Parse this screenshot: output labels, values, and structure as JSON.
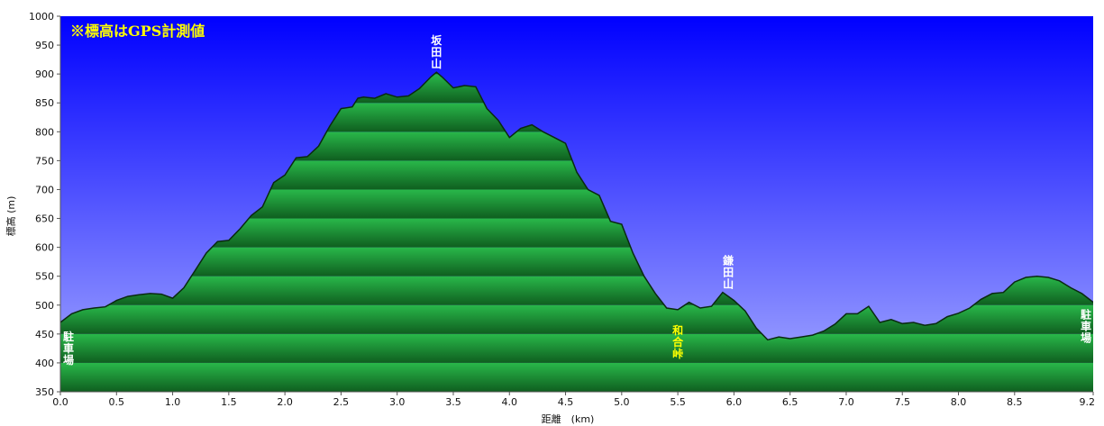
{
  "chart_data": {
    "type": "area",
    "note": "※標高はGPS計測値",
    "xlabel": "距離　(km)",
    "ylabel": "標高 (m)",
    "xlim": [
      0,
      9.2
    ],
    "ylim": [
      350,
      1000
    ],
    "xticks": [
      "0.0",
      "0.5",
      "1.0",
      "1.5",
      "2.0",
      "2.5",
      "3.0",
      "3.5",
      "4.0",
      "4.5",
      "5.0",
      "5.5",
      "6.0",
      "6.5",
      "7.0",
      "7.5",
      "8.0",
      "8.5",
      "9.2"
    ],
    "yticks": [
      "350",
      "400",
      "450",
      "500",
      "550",
      "600",
      "650",
      "700",
      "750",
      "800",
      "850",
      "900",
      "950",
      "1000"
    ],
    "series": [
      {
        "x": [
          0.0,
          0.1,
          0.2,
          0.3,
          0.4,
          0.5,
          0.6,
          0.7,
          0.8,
          0.9,
          1.0,
          1.1,
          1.2,
          1.3,
          1.4,
          1.5,
          1.6,
          1.7,
          1.8,
          1.9,
          2.0,
          2.1,
          2.2,
          2.3,
          2.4,
          2.5,
          2.6,
          2.65,
          2.7,
          2.8,
          2.9,
          3.0,
          3.1,
          3.2,
          3.3,
          3.35,
          3.4,
          3.5,
          3.6,
          3.7,
          3.8,
          3.9,
          4.0,
          4.1,
          4.2,
          4.3,
          4.4,
          4.5,
          4.6,
          4.7,
          4.8,
          4.9,
          5.0,
          5.1,
          5.2,
          5.3,
          5.4,
          5.5,
          5.6,
          5.7,
          5.8,
          5.9,
          6.0,
          6.1,
          6.2,
          6.3,
          6.4,
          6.5,
          6.6,
          6.7,
          6.8,
          6.9,
          7.0,
          7.1,
          7.2,
          7.3,
          7.4,
          7.5,
          7.6,
          7.7,
          7.8,
          7.9,
          8.0,
          8.1,
          8.2,
          8.3,
          8.4,
          8.5,
          8.6,
          8.7,
          8.8,
          8.9,
          9.0,
          9.1,
          9.2
        ],
        "y": [
          470,
          485,
          492,
          495,
          497,
          508,
          515,
          518,
          520,
          519,
          512,
          530,
          560,
          590,
          610,
          612,
          632,
          655,
          670,
          712,
          725,
          755,
          757,
          775,
          810,
          840,
          843,
          858,
          860,
          858,
          866,
          860,
          862,
          875,
          895,
          903,
          895,
          876,
          880,
          878,
          840,
          820,
          790,
          806,
          812,
          800,
          790,
          780,
          730,
          700,
          690,
          645,
          640,
          590,
          550,
          520,
          495,
          492,
          505,
          495,
          498,
          522,
          508,
          490,
          460,
          440,
          445,
          442,
          445,
          448,
          455,
          467,
          485,
          485,
          498,
          470,
          475,
          468,
          470,
          465,
          468,
          480,
          486,
          495,
          510,
          520,
          522,
          540,
          548,
          550,
          548,
          542,
          530,
          520,
          505
        ]
      }
    ],
    "annotations": [
      {
        "text": "坂田山",
        "x": 3.35,
        "y": 903,
        "color": "#ffffff"
      },
      {
        "text": "鎌田山",
        "x": 5.95,
        "y": 522,
        "color": "#ffffff"
      },
      {
        "text": "和合峠",
        "x": 5.5,
        "y": 492,
        "color": "#ffff00"
      },
      {
        "text": "駐車場",
        "x": 0.0,
        "y": 470,
        "color": "#ffffff"
      },
      {
        "text": "駐車場",
        "x": 9.2,
        "y": 505,
        "color": "#ffffff"
      }
    ],
    "colors": {
      "sky_top": "#0000ff",
      "sky_bottom": "#a7acff",
      "ground_light": "#29b84a",
      "ground_dark": "#0f5e1f",
      "outline": "#0a2a10",
      "note": "#ffff00"
    },
    "grid": false,
    "legend": "none"
  }
}
